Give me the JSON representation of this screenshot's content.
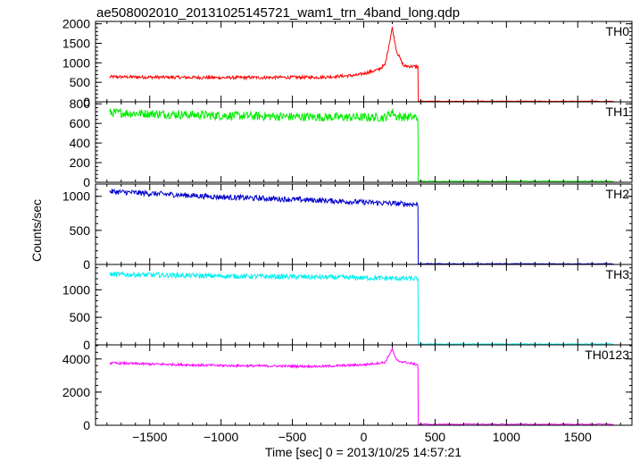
{
  "chart_data": {
    "type": "line",
    "title": "ae508002010_20131025145721_wam1_trn_4band_long.qdp",
    "xlabel": "Time [sec] 0 = 2013/10/25 14:57:21",
    "ylabel": "Counts/sec",
    "xlim": [
      -1880,
      1880
    ],
    "xticks": [
      -1500,
      -1000,
      -500,
      0,
      500,
      1000,
      1500
    ],
    "xtick_labels": [
      "−1500",
      "−1000",
      "−500",
      "0",
      "500",
      "1000",
      "1500"
    ],
    "x_data_range": [
      -1780,
      1760
    ],
    "drop_time": 380,
    "panels": [
      {
        "name": "TH0",
        "color": "#ff0000",
        "ylim": [
          0,
          2060
        ],
        "yticks": [
          0,
          500,
          1000,
          1500,
          2000
        ],
        "baseline": [
          [
            -1780,
            640
          ],
          [
            -1000,
            620
          ],
          [
            -300,
            630
          ],
          [
            -50,
            680
          ],
          [
            100,
            820
          ],
          [
            150,
            950
          ],
          [
            200,
            1900
          ],
          [
            230,
            1300
          ],
          [
            280,
            920
          ],
          [
            380,
            900
          ]
        ],
        "noise": 40,
        "after_drop": 15
      },
      {
        "name": "TH1",
        "color": "#00ee00",
        "ylim": [
          0,
          820
        ],
        "yticks": [
          0,
          200,
          400,
          600,
          800
        ],
        "baseline": [
          [
            -1780,
            710
          ],
          [
            -1000,
            680
          ],
          [
            -300,
            665
          ],
          [
            150,
            660
          ],
          [
            200,
            720
          ],
          [
            230,
            670
          ],
          [
            380,
            660
          ]
        ],
        "noise": 45,
        "after_drop": 10
      },
      {
        "name": "TH2",
        "color": "#0000d0",
        "ylim": [
          0,
          1180
        ],
        "yticks": [
          0,
          500,
          1000
        ],
        "baseline": [
          [
            -1780,
            1070
          ],
          [
            -1000,
            990
          ],
          [
            -300,
            940
          ],
          [
            380,
            880
          ]
        ],
        "noise": 40,
        "after_drop": 10
      },
      {
        "name": "TH3",
        "color": "#00f0f0",
        "ylim": [
          0,
          1460
        ],
        "yticks": [
          0,
          500,
          1000
        ],
        "baseline": [
          [
            -1780,
            1280
          ],
          [
            -1000,
            1250
          ],
          [
            -300,
            1230
          ],
          [
            380,
            1200
          ]
        ],
        "noise": 45,
        "after_drop": 15
      },
      {
        "name": "TH0123",
        "color": "#ff00ff",
        "ylim": [
          0,
          4850
        ],
        "yticks": [
          0,
          2000,
          4000
        ],
        "baseline": [
          [
            -1780,
            3750
          ],
          [
            -1000,
            3600
          ],
          [
            -300,
            3550
          ],
          [
            0,
            3650
          ],
          [
            150,
            3800
          ],
          [
            200,
            4600
          ],
          [
            230,
            3900
          ],
          [
            380,
            3650
          ]
        ],
        "noise": 70,
        "after_drop": 60
      }
    ]
  }
}
